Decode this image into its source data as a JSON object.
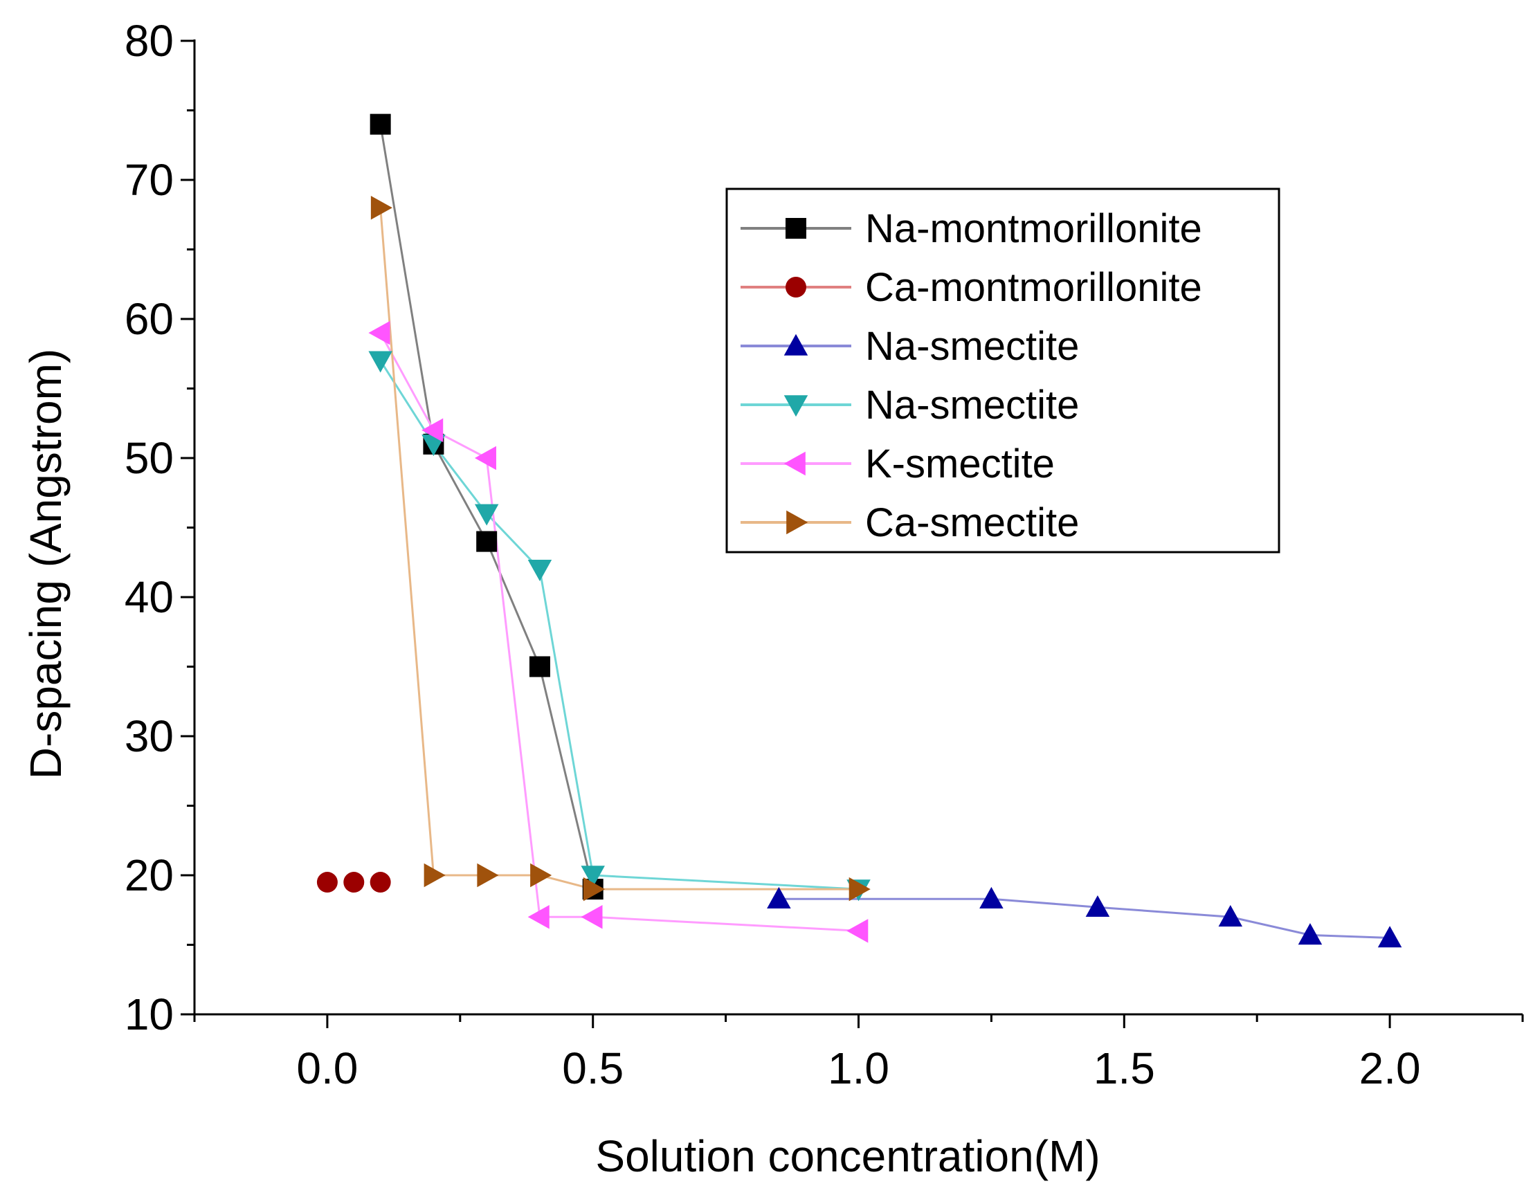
{
  "chart_data": {
    "type": "line",
    "title": "",
    "xlabel": "Solution concentration(M)",
    "ylabel": "D-spacing (Angstrom)",
    "xlim": [
      -0.25,
      2.25
    ],
    "ylim": [
      10,
      80
    ],
    "x_ticks": [
      0.0,
      0.5,
      1.0,
      1.5,
      2.0
    ],
    "x_tick_labels": [
      "0.0",
      "0.5",
      "1.0",
      "1.5",
      "2.0"
    ],
    "y_ticks": [
      10,
      20,
      30,
      40,
      50,
      60,
      70,
      80
    ],
    "y_tick_labels": [
      "10",
      "20",
      "30",
      "40",
      "50",
      "60",
      "70",
      "80"
    ],
    "grid": false,
    "legend_position": "top-right",
    "series": [
      {
        "name": "Na-montmorillonite",
        "marker": "square",
        "marker_color": "#000000",
        "line_color": "#808080",
        "x": [
          0.1,
          0.2,
          0.3,
          0.4,
          0.5
        ],
        "y": [
          74,
          51,
          44,
          35,
          19
        ]
      },
      {
        "name": "Ca-montmorillonite",
        "marker": "circle",
        "marker_color": "#9b0000",
        "line_color": "#e08080",
        "x": [
          0.0,
          0.05,
          0.1
        ],
        "y": [
          19.5,
          19.5,
          19.5
        ],
        "connected": false
      },
      {
        "name": "Na-smectite",
        "marker": "triangle-up",
        "marker_color": "#0000a0",
        "line_color": "#8a8ad8",
        "x": [
          0.85,
          1.25,
          1.45,
          1.7,
          1.85,
          2.0
        ],
        "y": [
          18.3,
          18.3,
          17.7,
          17.0,
          15.7,
          15.5
        ]
      },
      {
        "name": "Na-smectite",
        "marker": "triangle-down",
        "marker_color": "#20a8a8",
        "line_color": "#6ed6d6",
        "x": [
          0.1,
          0.2,
          0.3,
          0.4,
          0.5,
          1.0
        ],
        "y": [
          57,
          51,
          46,
          42,
          20,
          19
        ]
      },
      {
        "name": "K-smectite",
        "marker": "triangle-left",
        "marker_color": "#ff55ff",
        "line_color": "#ff9cff",
        "x": [
          0.1,
          0.2,
          0.3,
          0.4,
          0.5,
          1.0
        ],
        "y": [
          59,
          52,
          50,
          17,
          17,
          16
        ]
      },
      {
        "name": "Ca-smectite",
        "marker": "triangle-right",
        "marker_color": "#a0520c",
        "line_color": "#e8b888",
        "x": [
          0.1,
          0.2,
          0.3,
          0.4,
          0.5,
          1.0
        ],
        "y": [
          68,
          20,
          20,
          20,
          19,
          19
        ]
      }
    ]
  }
}
